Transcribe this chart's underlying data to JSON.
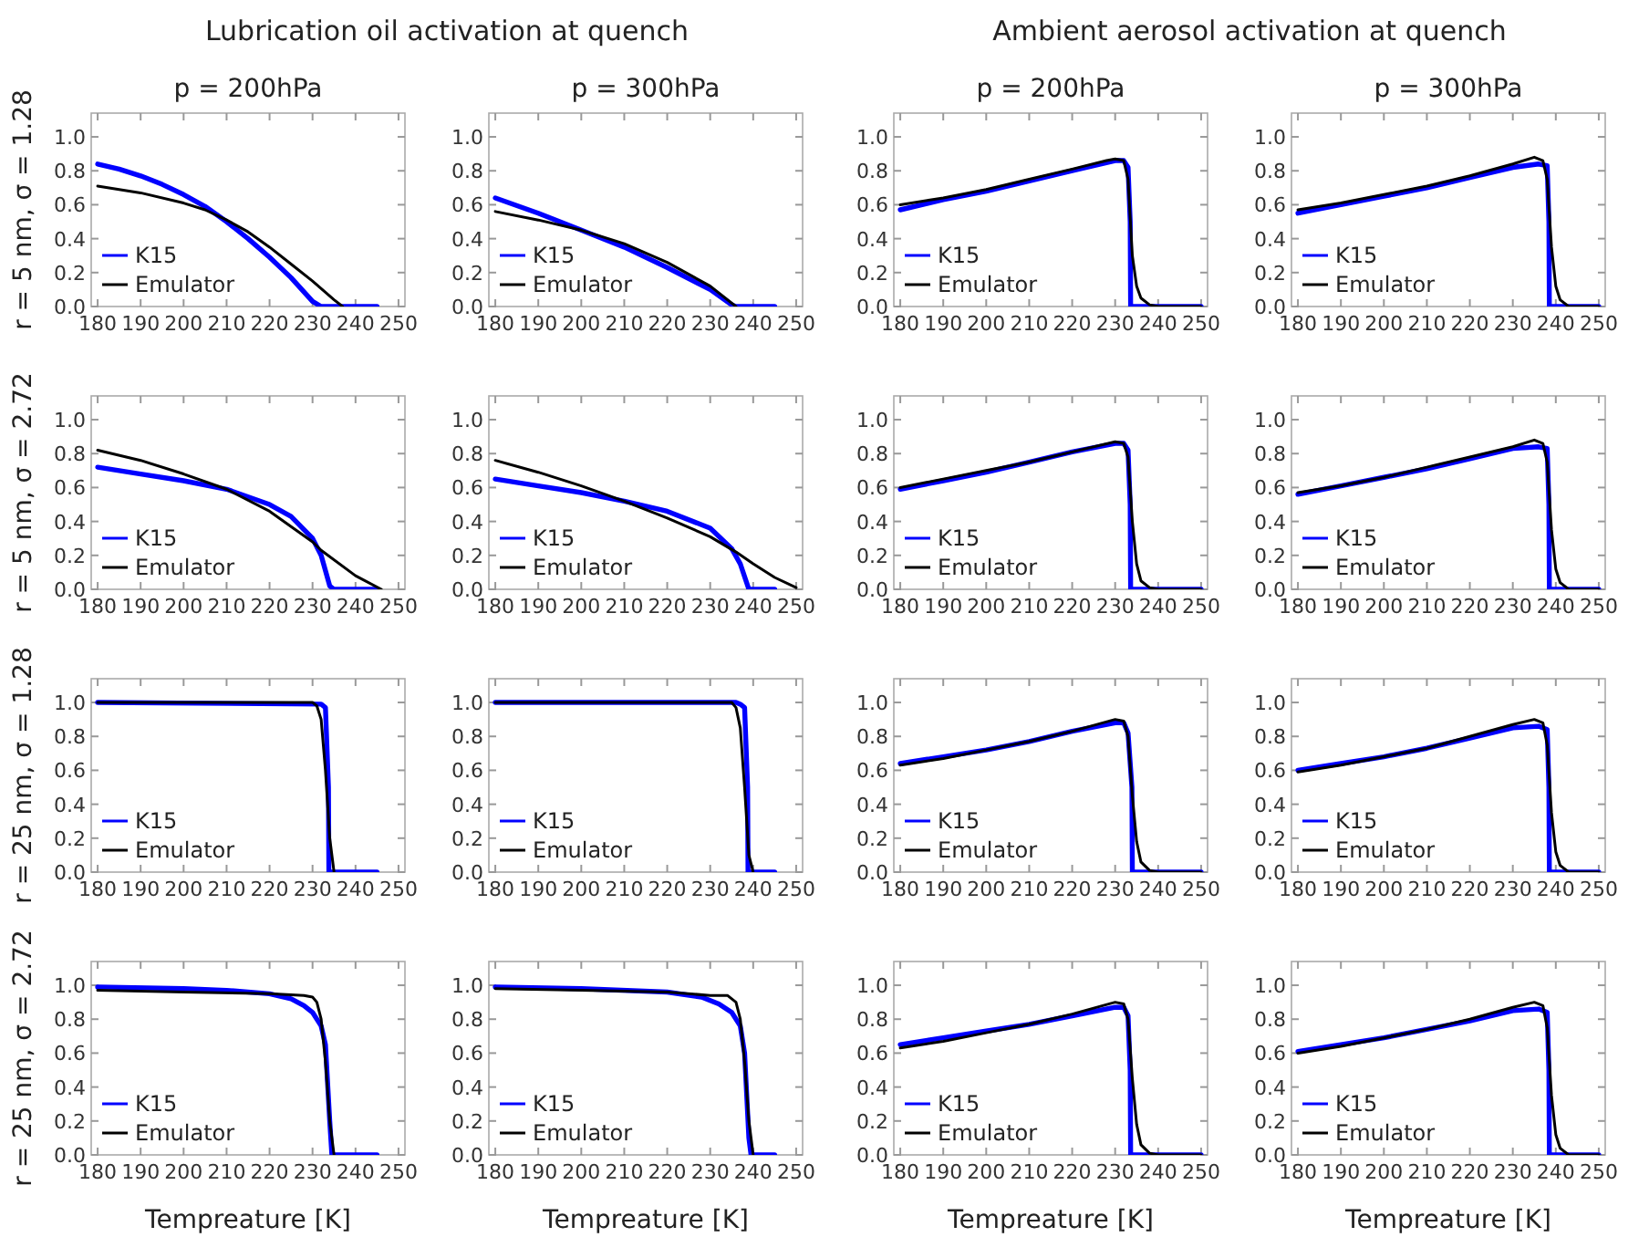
{
  "chart_data": [
    {
      "type": "line",
      "title": "Lubrication oil activation at quench",
      "subtitle": "p = 200hPa",
      "ylabel": "r = 5 nm, σ = 1.28",
      "legend": "bottom left",
      "xlim": [
        178.5,
        251.5
      ],
      "ylim": [
        0,
        1.14
      ],
      "xticks": [
        180,
        190,
        200,
        210,
        220,
        230,
        240,
        250
      ],
      "yticks": [
        {
          "value": 0,
          "label": "0.0"
        },
        {
          "value": 0.2,
          "label": "0.2"
        },
        {
          "value": 0.4,
          "label": "0.4"
        },
        {
          "value": 0.6,
          "label": "0.6"
        },
        {
          "value": 0.8,
          "label": "0.8"
        },
        {
          "value": 1,
          "label": "1.0"
        }
      ],
      "series": [
        {
          "name": "K15",
          "color": "#0000ff",
          "x": [
            180,
            185,
            190,
            195,
            200,
            205,
            210,
            215,
            220,
            225,
            230,
            232,
            245
          ],
          "values": [
            0.84,
            0.81,
            0.77,
            0.72,
            0.66,
            0.59,
            0.5,
            0.4,
            0.29,
            0.17,
            0.03,
            0,
            0
          ]
        },
        {
          "name": "Emulator",
          "color": "#000000",
          "x": [
            180,
            190,
            200,
            205,
            210,
            215,
            220,
            225,
            230,
            235,
            237
          ],
          "values": [
            0.71,
            0.67,
            0.61,
            0.57,
            0.51,
            0.44,
            0.35,
            0.25,
            0.15,
            0.04,
            0
          ]
        }
      ]
    },
    {
      "type": "line",
      "subtitle": "p = 300hPa",
      "legend": "bottom left",
      "xlim": [
        178.5,
        251.5
      ],
      "ylim": [
        0,
        1.14
      ],
      "xticks": [
        180,
        190,
        200,
        210,
        220,
        230,
        240,
        250
      ],
      "yticks": [
        {
          "value": 0,
          "label": "0.0"
        },
        {
          "value": 0.2,
          "label": "0.2"
        },
        {
          "value": 0.4,
          "label": "0.4"
        },
        {
          "value": 0.6,
          "label": "0.6"
        },
        {
          "value": 0.8,
          "label": "0.8"
        },
        {
          "value": 1,
          "label": "1.0"
        }
      ],
      "series": [
        {
          "name": "K15",
          "color": "#0000ff",
          "x": [
            180,
            190,
            200,
            210,
            220,
            230,
            235,
            236,
            245
          ],
          "values": [
            0.64,
            0.55,
            0.45,
            0.35,
            0.23,
            0.1,
            0.01,
            0,
            0
          ]
        },
        {
          "name": "Emulator",
          "color": "#000000",
          "x": [
            180,
            190,
            200,
            210,
            220,
            230,
            236
          ],
          "values": [
            0.56,
            0.51,
            0.45,
            0.37,
            0.26,
            0.12,
            0
          ]
        }
      ]
    },
    {
      "type": "line",
      "title": "Ambient aerosol activation at quench",
      "subtitle": "p = 200hPa",
      "legend": "bottom left",
      "xlim": [
        178.5,
        251.5
      ],
      "ylim": [
        0,
        1.14
      ],
      "xticks": [
        180,
        190,
        200,
        210,
        220,
        230,
        240,
        250
      ],
      "yticks": [
        {
          "value": 0,
          "label": "0.0"
        },
        {
          "value": 0.2,
          "label": "0.2"
        },
        {
          "value": 0.4,
          "label": "0.4"
        },
        {
          "value": 0.6,
          "label": "0.6"
        },
        {
          "value": 0.8,
          "label": "0.8"
        },
        {
          "value": 1,
          "label": "1.0"
        }
      ],
      "series": [
        {
          "name": "K15",
          "color": "#0000ff",
          "x": [
            180,
            190,
            200,
            210,
            220,
            225,
            230,
            232,
            233,
            233.5,
            233.6,
            237,
            250
          ],
          "values": [
            0.57,
            0.63,
            0.68,
            0.74,
            0.8,
            0.83,
            0.86,
            0.86,
            0.82,
            0.5,
            0,
            0,
            0
          ]
        },
        {
          "name": "Emulator",
          "color": "#000000",
          "x": [
            180,
            190,
            200,
            210,
            220,
            228,
            230,
            232,
            233,
            234,
            235,
            236,
            238,
            240,
            250
          ],
          "values": [
            0.6,
            0.64,
            0.69,
            0.75,
            0.81,
            0.86,
            0.87,
            0.86,
            0.75,
            0.3,
            0.12,
            0.05,
            0.01,
            0,
            0
          ]
        }
      ]
    },
    {
      "type": "line",
      "subtitle": "p = 300hPa",
      "legend": "bottom left",
      "xlim": [
        178.5,
        251.5
      ],
      "ylim": [
        0,
        1.14
      ],
      "xticks": [
        180,
        190,
        200,
        210,
        220,
        230,
        240,
        250
      ],
      "yticks": [
        {
          "value": 0,
          "label": "0.0"
        },
        {
          "value": 0.2,
          "label": "0.2"
        },
        {
          "value": 0.4,
          "label": "0.4"
        },
        {
          "value": 0.6,
          "label": "0.6"
        },
        {
          "value": 0.8,
          "label": "0.8"
        },
        {
          "value": 1,
          "label": "1.0"
        }
      ],
      "series": [
        {
          "name": "K15",
          "color": "#0000ff",
          "x": [
            180,
            190,
            200,
            210,
            220,
            230,
            236,
            238,
            238.4,
            238.5,
            250
          ],
          "values": [
            0.55,
            0.6,
            0.65,
            0.7,
            0.76,
            0.82,
            0.84,
            0.83,
            0.5,
            0,
            0
          ]
        },
        {
          "name": "Emulator",
          "color": "#000000",
          "x": [
            180,
            190,
            200,
            210,
            220,
            230,
            235,
            237,
            238,
            239,
            240,
            241,
            243,
            250
          ],
          "values": [
            0.57,
            0.61,
            0.66,
            0.71,
            0.77,
            0.84,
            0.88,
            0.86,
            0.75,
            0.35,
            0.12,
            0.04,
            0,
            0
          ]
        }
      ]
    },
    {
      "type": "line",
      "ylabel": "r = 5 nm, σ = 2.72",
      "legend": "bottom left",
      "xlim": [
        178.5,
        251.5
      ],
      "ylim": [
        0,
        1.14
      ],
      "xticks": [
        180,
        190,
        200,
        210,
        220,
        230,
        240,
        250
      ],
      "yticks": [
        {
          "value": 0,
          "label": "0.0"
        },
        {
          "value": 0.2,
          "label": "0.2"
        },
        {
          "value": 0.4,
          "label": "0.4"
        },
        {
          "value": 0.6,
          "label": "0.6"
        },
        {
          "value": 0.8,
          "label": "0.8"
        },
        {
          "value": 1,
          "label": "1.0"
        }
      ],
      "series": [
        {
          "name": "K15",
          "color": "#0000ff",
          "x": [
            180,
            190,
            200,
            210,
            220,
            225,
            230,
            232,
            234,
            235,
            245
          ],
          "values": [
            0.72,
            0.68,
            0.64,
            0.59,
            0.5,
            0.43,
            0.3,
            0.2,
            0.02,
            0,
            0
          ]
        },
        {
          "name": "Emulator",
          "color": "#000000",
          "x": [
            180,
            190,
            200,
            210,
            220,
            230,
            232,
            240,
            246
          ],
          "values": [
            0.82,
            0.76,
            0.68,
            0.59,
            0.46,
            0.28,
            0.23,
            0.08,
            0
          ]
        }
      ]
    },
    {
      "type": "line",
      "legend": "bottom left",
      "xlim": [
        178.5,
        251.5
      ],
      "ylim": [
        0,
        1.14
      ],
      "xticks": [
        180,
        190,
        200,
        210,
        220,
        230,
        240,
        250
      ],
      "yticks": [
        {
          "value": 0,
          "label": "0.0"
        },
        {
          "value": 0.2,
          "label": "0.2"
        },
        {
          "value": 0.4,
          "label": "0.4"
        },
        {
          "value": 0.6,
          "label": "0.6"
        },
        {
          "value": 0.8,
          "label": "0.8"
        },
        {
          "value": 1,
          "label": "1.0"
        }
      ],
      "series": [
        {
          "name": "K15",
          "color": "#0000ff",
          "x": [
            180,
            190,
            200,
            210,
            220,
            230,
            235,
            237,
            239,
            245
          ],
          "values": [
            0.65,
            0.61,
            0.57,
            0.52,
            0.46,
            0.36,
            0.24,
            0.15,
            0,
            0
          ]
        },
        {
          "name": "Emulator",
          "color": "#000000",
          "x": [
            180,
            190,
            200,
            210,
            220,
            230,
            236,
            240,
            245,
            250
          ],
          "values": [
            0.76,
            0.69,
            0.61,
            0.52,
            0.42,
            0.31,
            0.22,
            0.15,
            0.07,
            0.01
          ]
        }
      ]
    },
    {
      "type": "line",
      "legend": "bottom left",
      "xlim": [
        178.5,
        251.5
      ],
      "ylim": [
        0,
        1.14
      ],
      "xticks": [
        180,
        190,
        200,
        210,
        220,
        230,
        240,
        250
      ],
      "yticks": [
        {
          "value": 0,
          "label": "0.0"
        },
        {
          "value": 0.2,
          "label": "0.2"
        },
        {
          "value": 0.4,
          "label": "0.4"
        },
        {
          "value": 0.6,
          "label": "0.6"
        },
        {
          "value": 0.8,
          "label": "0.8"
        },
        {
          "value": 1,
          "label": "1.0"
        }
      ],
      "series": [
        {
          "name": "K15",
          "color": "#0000ff",
          "x": [
            180,
            190,
            200,
            210,
            220,
            230,
            232,
            233,
            233.5,
            233.6,
            237,
            250
          ],
          "values": [
            0.59,
            0.64,
            0.69,
            0.75,
            0.81,
            0.86,
            0.86,
            0.82,
            0.5,
            0,
            0,
            0
          ]
        },
        {
          "name": "Emulator",
          "color": "#000000",
          "x": [
            180,
            190,
            200,
            210,
            220,
            230,
            232,
            233,
            234,
            235,
            236,
            238,
            240,
            250
          ],
          "values": [
            0.6,
            0.65,
            0.7,
            0.75,
            0.81,
            0.87,
            0.86,
            0.78,
            0.4,
            0.15,
            0.05,
            0.01,
            0,
            0
          ]
        }
      ]
    },
    {
      "type": "line",
      "legend": "bottom left",
      "xlim": [
        178.5,
        251.5
      ],
      "ylim": [
        0,
        1.14
      ],
      "xticks": [
        180,
        190,
        200,
        210,
        220,
        230,
        240,
        250
      ],
      "yticks": [
        {
          "value": 0,
          "label": "0.0"
        },
        {
          "value": 0.2,
          "label": "0.2"
        },
        {
          "value": 0.4,
          "label": "0.4"
        },
        {
          "value": 0.6,
          "label": "0.6"
        },
        {
          "value": 0.8,
          "label": "0.8"
        },
        {
          "value": 1,
          "label": "1.0"
        }
      ],
      "series": [
        {
          "name": "K15",
          "color": "#0000ff",
          "x": [
            180,
            190,
            200,
            210,
            220,
            230,
            236,
            238,
            238.4,
            238.5,
            250
          ],
          "values": [
            0.56,
            0.61,
            0.66,
            0.71,
            0.77,
            0.83,
            0.84,
            0.83,
            0.5,
            0,
            0
          ]
        },
        {
          "name": "Emulator",
          "color": "#000000",
          "x": [
            180,
            190,
            200,
            210,
            220,
            230,
            235,
            237,
            238,
            239,
            240,
            241,
            243,
            250
          ],
          "values": [
            0.57,
            0.61,
            0.66,
            0.72,
            0.78,
            0.84,
            0.88,
            0.86,
            0.75,
            0.35,
            0.12,
            0.04,
            0,
            0
          ]
        }
      ]
    },
    {
      "type": "line",
      "ylabel": "r = 25 nm, σ = 1.28",
      "legend": "bottom left",
      "xlim": [
        178.5,
        251.5
      ],
      "ylim": [
        0,
        1.14
      ],
      "xticks": [
        180,
        190,
        200,
        210,
        220,
        230,
        240,
        250
      ],
      "yticks": [
        {
          "value": 0,
          "label": "0.0"
        },
        {
          "value": 0.2,
          "label": "0.2"
        },
        {
          "value": 0.4,
          "label": "0.4"
        },
        {
          "value": 0.6,
          "label": "0.6"
        },
        {
          "value": 0.8,
          "label": "0.8"
        },
        {
          "value": 1,
          "label": "1.0"
        }
      ],
      "series": [
        {
          "name": "K15",
          "color": "#0000ff",
          "x": [
            180,
            232,
            233,
            233.7,
            233.8,
            245
          ],
          "values": [
            1,
            0.99,
            0.97,
            0.5,
            0,
            0
          ]
        },
        {
          "name": "Emulator",
          "color": "#000000",
          "x": [
            180,
            230,
            231,
            232,
            233,
            234,
            235
          ],
          "values": [
            1,
            1,
            0.98,
            0.9,
            0.6,
            0.2,
            0
          ]
        }
      ]
    },
    {
      "type": "line",
      "legend": "bottom left",
      "xlim": [
        178.5,
        251.5
      ],
      "ylim": [
        0,
        1.14
      ],
      "xticks": [
        180,
        190,
        200,
        210,
        220,
        230,
        240,
        250
      ],
      "yticks": [
        {
          "value": 0,
          "label": "0.0"
        },
        {
          "value": 0.2,
          "label": "0.2"
        },
        {
          "value": 0.4,
          "label": "0.4"
        },
        {
          "value": 0.6,
          "label": "0.6"
        },
        {
          "value": 0.8,
          "label": "0.8"
        },
        {
          "value": 1,
          "label": "1.0"
        }
      ],
      "series": [
        {
          "name": "K15",
          "color": "#0000ff",
          "x": [
            180,
            236,
            237,
            238,
            238.7,
            238.8,
            245
          ],
          "values": [
            1,
            1,
            0.99,
            0.97,
            0.5,
            0,
            0
          ]
        },
        {
          "name": "Emulator",
          "color": "#000000",
          "x": [
            180,
            235,
            236,
            237,
            238,
            239,
            240
          ],
          "values": [
            1,
            1,
            0.97,
            0.85,
            0.5,
            0.1,
            0
          ]
        }
      ]
    },
    {
      "type": "line",
      "legend": "bottom left",
      "xlim": [
        178.5,
        251.5
      ],
      "ylim": [
        0,
        1.14
      ],
      "xticks": [
        180,
        190,
        200,
        210,
        220,
        230,
        240,
        250
      ],
      "yticks": [
        {
          "value": 0,
          "label": "0.0"
        },
        {
          "value": 0.2,
          "label": "0.2"
        },
        {
          "value": 0.4,
          "label": "0.4"
        },
        {
          "value": 0.6,
          "label": "0.6"
        },
        {
          "value": 0.8,
          "label": "0.8"
        },
        {
          "value": 1,
          "label": "1.0"
        }
      ],
      "series": [
        {
          "name": "K15",
          "color": "#0000ff",
          "x": [
            180,
            190,
            200,
            210,
            220,
            230,
            232,
            233,
            233.9,
            234,
            250
          ],
          "values": [
            0.64,
            0.68,
            0.72,
            0.77,
            0.83,
            0.88,
            0.88,
            0.82,
            0.5,
            0,
            0
          ]
        },
        {
          "name": "Emulator",
          "color": "#000000",
          "x": [
            180,
            190,
            200,
            210,
            220,
            230,
            232,
            233,
            234,
            235,
            236,
            238,
            240,
            250
          ],
          "values": [
            0.63,
            0.67,
            0.72,
            0.77,
            0.83,
            0.9,
            0.89,
            0.8,
            0.45,
            0.18,
            0.06,
            0.01,
            0,
            0
          ]
        }
      ]
    },
    {
      "type": "line",
      "legend": "bottom left",
      "xlim": [
        178.5,
        251.5
      ],
      "ylim": [
        0,
        1.14
      ],
      "xticks": [
        180,
        190,
        200,
        210,
        220,
        230,
        240,
        250
      ],
      "yticks": [
        {
          "value": 0,
          "label": "0.0"
        },
        {
          "value": 0.2,
          "label": "0.2"
        },
        {
          "value": 0.4,
          "label": "0.4"
        },
        {
          "value": 0.6,
          "label": "0.6"
        },
        {
          "value": 0.8,
          "label": "0.8"
        },
        {
          "value": 1,
          "label": "1.0"
        }
      ],
      "series": [
        {
          "name": "K15",
          "color": "#0000ff",
          "x": [
            180,
            190,
            200,
            210,
            220,
            230,
            236,
            238,
            238.4,
            238.5,
            250
          ],
          "values": [
            0.6,
            0.64,
            0.68,
            0.73,
            0.79,
            0.85,
            0.86,
            0.84,
            0.5,
            0,
            0
          ]
        },
        {
          "name": "Emulator",
          "color": "#000000",
          "x": [
            180,
            190,
            200,
            210,
            220,
            230,
            235,
            237,
            238,
            239,
            240,
            241,
            243,
            250
          ],
          "values": [
            0.59,
            0.63,
            0.68,
            0.73,
            0.8,
            0.87,
            0.9,
            0.88,
            0.75,
            0.35,
            0.12,
            0.04,
            0,
            0
          ]
        }
      ]
    },
    {
      "type": "line",
      "ylabel": "r = 25 nm, σ = 2.72",
      "xlabel": "Tempreature [K]",
      "legend": "bottom left",
      "xlim": [
        178.5,
        251.5
      ],
      "ylim": [
        0,
        1.14
      ],
      "xticks": [
        180,
        190,
        200,
        210,
        220,
        230,
        240,
        250
      ],
      "yticks": [
        {
          "value": 0,
          "label": "0.0"
        },
        {
          "value": 0.2,
          "label": "0.2"
        },
        {
          "value": 0.4,
          "label": "0.4"
        },
        {
          "value": 0.6,
          "label": "0.6"
        },
        {
          "value": 0.8,
          "label": "0.8"
        },
        {
          "value": 1,
          "label": "1.0"
        }
      ],
      "series": [
        {
          "name": "K15",
          "color": "#0000ff",
          "x": [
            180,
            200,
            210,
            220,
            225,
            228,
            230,
            232,
            233,
            234,
            234.5,
            245
          ],
          "values": [
            0.99,
            0.98,
            0.97,
            0.95,
            0.92,
            0.88,
            0.84,
            0.76,
            0.65,
            0.2,
            0,
            0
          ]
        },
        {
          "name": "Emulator",
          "color": "#000000",
          "x": [
            180,
            200,
            220,
            228,
            230,
            231,
            232,
            233,
            234,
            235
          ],
          "values": [
            0.97,
            0.96,
            0.95,
            0.94,
            0.93,
            0.9,
            0.8,
            0.55,
            0.2,
            0
          ]
        }
      ]
    },
    {
      "type": "line",
      "xlabel": "Tempreature [K]",
      "legend": "bottom left",
      "xlim": [
        178.5,
        251.5
      ],
      "ylim": [
        0,
        1.14
      ],
      "xticks": [
        180,
        190,
        200,
        210,
        220,
        230,
        240,
        250
      ],
      "yticks": [
        {
          "value": 0,
          "label": "0.0"
        },
        {
          "value": 0.2,
          "label": "0.2"
        },
        {
          "value": 0.4,
          "label": "0.4"
        },
        {
          "value": 0.6,
          "label": "0.6"
        },
        {
          "value": 0.8,
          "label": "0.8"
        },
        {
          "value": 1,
          "label": "1.0"
        }
      ],
      "series": [
        {
          "name": "K15",
          "color": "#0000ff",
          "x": [
            180,
            200,
            220,
            228,
            232,
            235,
            237,
            238,
            239,
            239.5,
            245
          ],
          "values": [
            0.99,
            0.98,
            0.96,
            0.93,
            0.89,
            0.84,
            0.76,
            0.6,
            0.1,
            0,
            0
          ]
        },
        {
          "name": "Emulator",
          "color": "#000000",
          "x": [
            180,
            200,
            220,
            230,
            234,
            236,
            237,
            238,
            239,
            240
          ],
          "values": [
            0.98,
            0.97,
            0.96,
            0.94,
            0.94,
            0.9,
            0.8,
            0.55,
            0.2,
            0
          ]
        }
      ]
    },
    {
      "type": "line",
      "xlabel": "Tempreature [K]",
      "legend": "bottom left",
      "xlim": [
        178.5,
        251.5
      ],
      "ylim": [
        0,
        1.14
      ],
      "xticks": [
        180,
        190,
        200,
        210,
        220,
        230,
        240,
        250
      ],
      "yticks": [
        {
          "value": 0,
          "label": "0.0"
        },
        {
          "value": 0.2,
          "label": "0.2"
        },
        {
          "value": 0.4,
          "label": "0.4"
        },
        {
          "value": 0.6,
          "label": "0.6"
        },
        {
          "value": 0.8,
          "label": "0.8"
        },
        {
          "value": 1,
          "label": "1.0"
        }
      ],
      "series": [
        {
          "name": "K15",
          "color": "#0000ff",
          "x": [
            180,
            190,
            200,
            210,
            220,
            230,
            232,
            233,
            233.5,
            233.6,
            250
          ],
          "values": [
            0.65,
            0.69,
            0.73,
            0.77,
            0.82,
            0.87,
            0.87,
            0.82,
            0.5,
            0,
            0
          ]
        },
        {
          "name": "Emulator",
          "color": "#000000",
          "x": [
            180,
            190,
            200,
            210,
            220,
            230,
            232,
            233,
            234,
            235,
            236,
            238,
            240,
            250
          ],
          "values": [
            0.63,
            0.67,
            0.72,
            0.77,
            0.83,
            0.9,
            0.89,
            0.8,
            0.45,
            0.18,
            0.06,
            0.01,
            0,
            0
          ]
        }
      ]
    },
    {
      "type": "line",
      "xlabel": "Tempreature [K]",
      "legend": "bottom left",
      "xlim": [
        178.5,
        251.5
      ],
      "ylim": [
        0,
        1.14
      ],
      "xticks": [
        180,
        190,
        200,
        210,
        220,
        230,
        240,
        250
      ],
      "yticks": [
        {
          "value": 0,
          "label": "0.0"
        },
        {
          "value": 0.2,
          "label": "0.2"
        },
        {
          "value": 0.4,
          "label": "0.4"
        },
        {
          "value": 0.6,
          "label": "0.6"
        },
        {
          "value": 0.8,
          "label": "0.8"
        },
        {
          "value": 1,
          "label": "1.0"
        }
      ],
      "series": [
        {
          "name": "K15",
          "color": "#0000ff",
          "x": [
            180,
            190,
            200,
            210,
            220,
            230,
            236,
            238,
            238.4,
            238.5,
            250
          ],
          "values": [
            0.61,
            0.65,
            0.69,
            0.74,
            0.79,
            0.85,
            0.86,
            0.84,
            0.5,
            0,
            0
          ]
        },
        {
          "name": "Emulator",
          "color": "#000000",
          "x": [
            180,
            190,
            200,
            210,
            220,
            230,
            235,
            237,
            238,
            239,
            240,
            241,
            243,
            250
          ],
          "values": [
            0.6,
            0.64,
            0.69,
            0.74,
            0.8,
            0.87,
            0.9,
            0.88,
            0.75,
            0.35,
            0.12,
            0.04,
            0,
            0
          ]
        }
      ]
    }
  ]
}
